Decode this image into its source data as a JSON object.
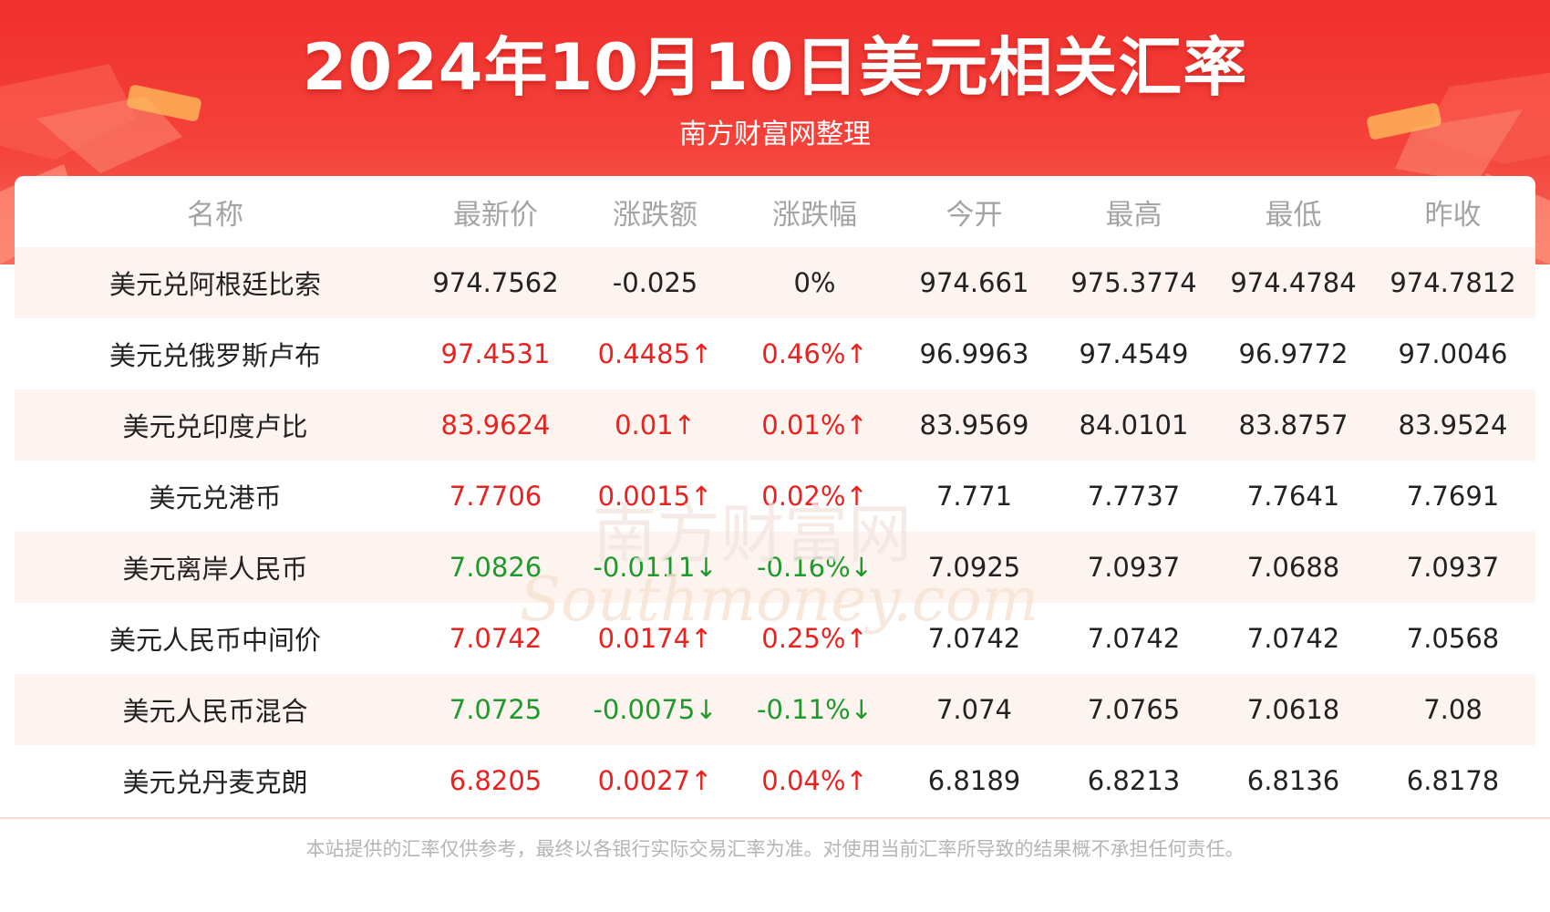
{
  "header": {
    "title": "2024年10月10日美元相关汇率",
    "subtitle": "南方财富网整理"
  },
  "colors": {
    "header_red": "#f0302c",
    "up": "#e8231f",
    "down": "#1e9a2c",
    "row_shade": "#fdf3ef"
  },
  "watermark": {
    "text1": "南方财富网",
    "text2": "Southmoney.com"
  },
  "chart_data": {
    "type": "table",
    "columns": [
      "名称",
      "最新价",
      "涨跌额",
      "涨跌幅",
      "今开",
      "最高",
      "最低",
      "昨收"
    ],
    "rows": [
      {
        "name": "美元兑阿根廷比索",
        "latest": "974.7562",
        "change": "-0.025",
        "pct": "0%",
        "open": "974.661",
        "high": "975.3774",
        "low": "974.4784",
        "prev": "974.7812",
        "trend": "flat"
      },
      {
        "name": "美元兑俄罗斯卢布",
        "latest": "97.4531",
        "change": "0.4485↑",
        "pct": "0.46%↑",
        "open": "96.9963",
        "high": "97.4549",
        "low": "96.9772",
        "prev": "97.0046",
        "trend": "up"
      },
      {
        "name": "美元兑印度卢比",
        "latest": "83.9624",
        "change": "0.01↑",
        "pct": "0.01%↑",
        "open": "83.9569",
        "high": "84.0101",
        "low": "83.8757",
        "prev": "83.9524",
        "trend": "up"
      },
      {
        "name": "美元兑港币",
        "latest": "7.7706",
        "change": "0.0015↑",
        "pct": "0.02%↑",
        "open": "7.771",
        "high": "7.7737",
        "low": "7.7641",
        "prev": "7.7691",
        "trend": "up"
      },
      {
        "name": "美元离岸人民币",
        "latest": "7.0826",
        "change": "-0.0111↓",
        "pct": "-0.16%↓",
        "open": "7.0925",
        "high": "7.0937",
        "low": "7.0688",
        "prev": "7.0937",
        "trend": "down"
      },
      {
        "name": "美元人民币中间价",
        "latest": "7.0742",
        "change": "0.0174↑",
        "pct": "0.25%↑",
        "open": "7.0742",
        "high": "7.0742",
        "low": "7.0742",
        "prev": "7.0568",
        "trend": "up"
      },
      {
        "name": "美元人民币混合",
        "latest": "7.0725",
        "change": "-0.0075↓",
        "pct": "-0.11%↓",
        "open": "7.074",
        "high": "7.0765",
        "low": "7.0618",
        "prev": "7.08",
        "trend": "down"
      },
      {
        "name": "美元兑丹麦克朗",
        "latest": "6.8205",
        "change": "0.0027↑",
        "pct": "0.04%↑",
        "open": "6.8189",
        "high": "6.8213",
        "low": "6.8136",
        "prev": "6.8178",
        "trend": "up"
      }
    ]
  },
  "footer": {
    "disclaimer": "本站提供的汇率仅供参考，最终以各银行实际交易汇率为准。对使用当前汇率所导致的结果概不承担任何责任。"
  }
}
